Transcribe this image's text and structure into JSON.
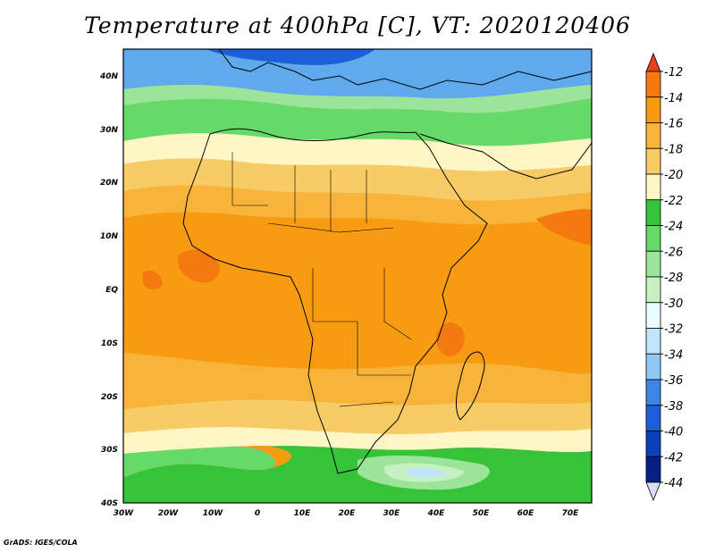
{
  "title": "Temperature at 400hPa [C], VT: 2020120406",
  "credit": "GrADS: IGES/COLA",
  "map": {
    "region": "Africa",
    "lat_ticks": [
      "40N",
      "30N",
      "20N",
      "10N",
      "EQ",
      "10S",
      "20S",
      "30S",
      "40S"
    ],
    "lon_ticks": [
      "30W",
      "20W",
      "10W",
      "0",
      "10E",
      "20E",
      "30E",
      "40E",
      "50E",
      "60E",
      "70E"
    ]
  },
  "colorbar": {
    "labels": [
      "-12",
      "-14",
      "-16",
      "-18",
      "-20",
      "-22",
      "-24",
      "-26",
      "-28",
      "-30",
      "-32",
      "-34",
      "-36",
      "-38",
      "-40",
      "-42",
      "-44"
    ],
    "colors": [
      "#e8401a",
      "#f47a10",
      "#f79b12",
      "#f7b33a",
      "#f7cb65",
      "#fae59a",
      "#fff6c6",
      "#37c339",
      "#65d96a",
      "#9be49a",
      "#c6f2c2",
      "#e8fdfd",
      "#bfe4fb",
      "#8fc8f3",
      "#5fa9ec",
      "#3d86e4",
      "#1d5fd6",
      "#0c3eb6",
      "#0a1f86",
      "#dcdcf7"
    ]
  }
}
